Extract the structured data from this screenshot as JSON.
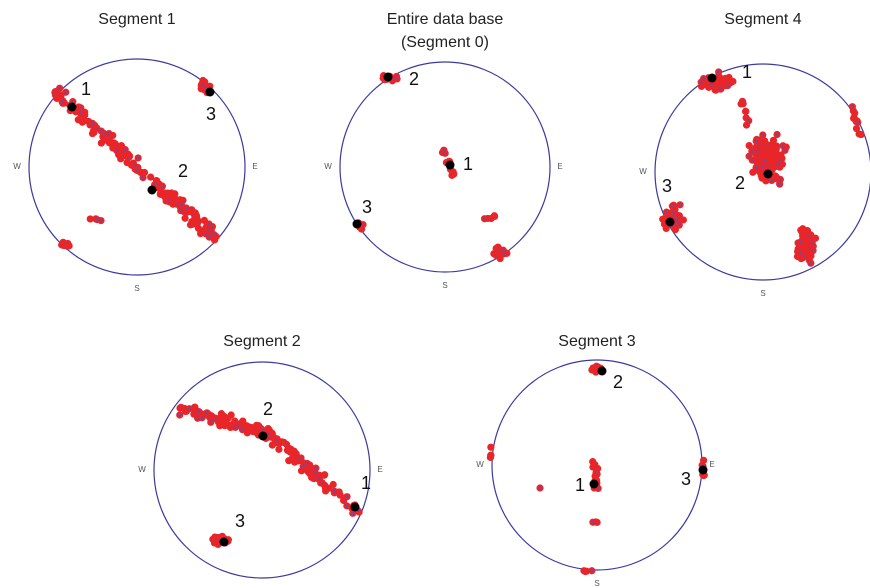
{
  "panels": [
    {
      "title": "Segment 1",
      "compass": {
        "west": "W",
        "east": "E",
        "south": "S"
      },
      "poles": [
        "1",
        "2",
        "3"
      ]
    },
    {
      "title": "Entire data base",
      "subtitle": "(Segment 0)",
      "compass": {
        "west": "W",
        "east": "E",
        "south": "S"
      },
      "poles": [
        "2",
        "1",
        "3"
      ]
    },
    {
      "title": "Segment 4",
      "compass": {
        "west": "W",
        "south": "S"
      },
      "poles": [
        "1",
        "2",
        "3"
      ]
    },
    {
      "title": "Segment 2",
      "compass": {
        "west": "W",
        "east": "E",
        "south": "S"
      },
      "poles": [
        "2",
        "1",
        "3"
      ]
    },
    {
      "title": "Segment 3",
      "compass": {
        "west": "W",
        "east": "E",
        "south": "S"
      },
      "poles": [
        "2",
        "1",
        "3"
      ]
    }
  ]
}
